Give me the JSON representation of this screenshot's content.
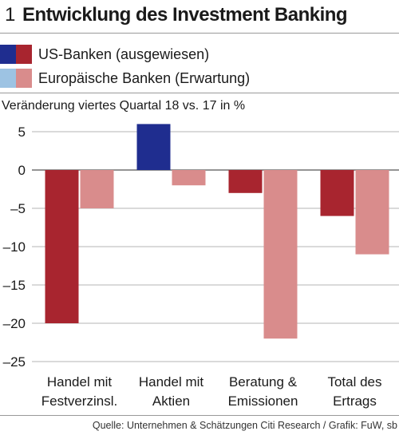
{
  "header": {
    "number": "1",
    "title": "Entwicklung des Investment Banking"
  },
  "legend": [
    {
      "label": "US-Banken (ausgewiesen)",
      "colors": [
        "#1f2d8f",
        "#a8252f"
      ]
    },
    {
      "label": "Europäische Banken (Erwartung)",
      "colors": [
        "#9dc3e3",
        "#d98c8c"
      ]
    }
  ],
  "source": "Quelle: Unternehmen & Schätzungen Citi Research / Grafik: FuW, sb",
  "chart_data": {
    "type": "bar",
    "subtitle": "Veränderung viertes Quartal 18 vs. 17 in %",
    "categories": [
      [
        "Handel mit",
        "Festverzinsl."
      ],
      [
        "Handel mit",
        "Aktien"
      ],
      [
        "Beratung &",
        "Emissionen"
      ],
      [
        "Total des",
        "Ertrags"
      ]
    ],
    "series": [
      {
        "name": "US-Banken (ausgewiesen)",
        "values": [
          -20,
          6,
          -3,
          -6
        ],
        "positive_color": "#1f2d8f",
        "negative_color": "#a8252f"
      },
      {
        "name": "Europäische Banken (Erwartung)",
        "values": [
          -5,
          -2,
          -22,
          -11
        ],
        "positive_color": "#9dc3e3",
        "negative_color": "#d98c8c"
      }
    ],
    "ylim": [
      -27,
      7
    ],
    "yticks": [
      5,
      0,
      -5,
      -10,
      -15,
      -20,
      -25
    ],
    "ytick_labels": [
      "5",
      "0",
      "–5",
      "–10",
      "–15",
      "–20",
      "–25"
    ],
    "grid": true
  }
}
